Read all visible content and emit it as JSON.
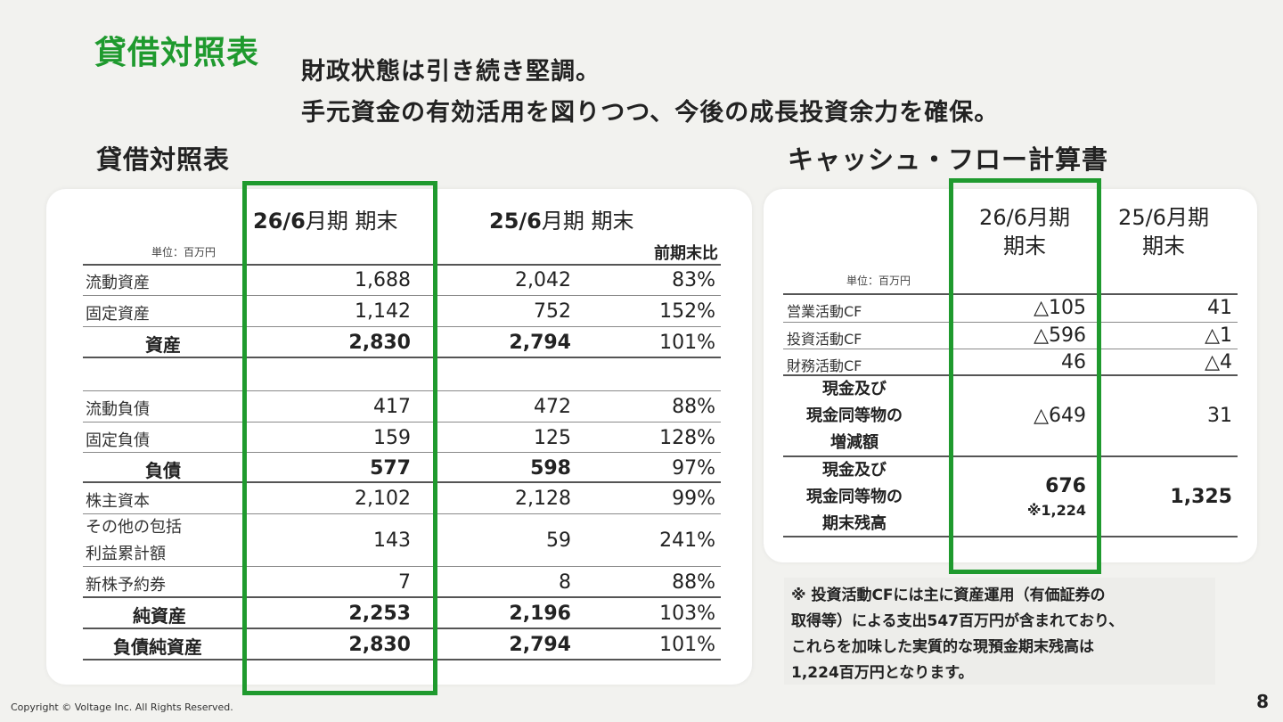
{
  "page_title": "貸借対照表",
  "subtitle": {
    "line1": "財政状態は引き続き堅調。",
    "line2": "手元資金の有効活用を図りつつ、今後の成長投資余力を確保。"
  },
  "balance_sheet": {
    "section_title": "貸借対照表",
    "unit": "単位：百万円",
    "col_current": "26/6月期 期末",
    "col_current_bold": "26/6",
    "col_current_rest": "月期 期末",
    "col_prev_bold": "25/6",
    "col_prev_rest": "月期 期末",
    "col_ratio": "前期末比",
    "rows": [
      {
        "label": "流動資産",
        "current": "1,688",
        "prev": "2,042",
        "ratio": "83%"
      },
      {
        "label": "固定資産",
        "current": "1,142",
        "prev": "752",
        "ratio": "152%"
      },
      {
        "label": "資産",
        "current": "2,830",
        "prev": "2,794",
        "ratio": "101%"
      },
      {
        "label": "流動負債",
        "current": "417",
        "prev": "472",
        "ratio": "88%"
      },
      {
        "label": "固定負債",
        "current": "159",
        "prev": "125",
        "ratio": "128%"
      },
      {
        "label": "負債",
        "current": "577",
        "prev": "598",
        "ratio": "97%"
      },
      {
        "label": "株主資本",
        "current": "2,102",
        "prev": "2,128",
        "ratio": "99%"
      },
      {
        "label_line1": "その他の包括",
        "label_line2": "利益累計額",
        "current": "143",
        "prev": "59",
        "ratio": "241%"
      },
      {
        "label": "新株予約券",
        "current": "7",
        "prev": "8",
        "ratio": "88%"
      },
      {
        "label": "純資産",
        "current": "2,253",
        "prev": "2,196",
        "ratio": "103%"
      },
      {
        "label": "負債純資産",
        "current": "2,830",
        "prev": "2,794",
        "ratio": "101%"
      }
    ]
  },
  "cash_flow": {
    "section_title": "キャッシュ・フロー計算書",
    "unit": "単位：百万円",
    "col_current_line1": "26/6月期",
    "col_current_line2": "期末",
    "col_prev_line1": "25/6月期",
    "col_prev_line2": "期末",
    "rows": [
      {
        "label": "営業活動CF",
        "current": "△105",
        "prev": "41"
      },
      {
        "label": "投資活動CF",
        "current": "△596",
        "prev": "△1"
      },
      {
        "label": "財務活動CF",
        "current": "46",
        "prev": "△4"
      },
      {
        "label_line1": "現金及び",
        "label_line2": "現金同等物の",
        "label_line3": "増減額",
        "current": "△649",
        "prev": "31"
      },
      {
        "label_line1": "現金及び",
        "label_line2": "現金同等物の",
        "label_line3": "期末残高",
        "current": "676",
        "current_note": "※1,224",
        "prev": "1,325"
      }
    ]
  },
  "note": {
    "line1": "※ 投資活動CFには主に資産運用（有価証券の",
    "line2": "取得等）による支出547百万円が含まれており、",
    "line3": "これらを加味した実質的な現預金期末残高は",
    "line4": "1,224百万円となります。"
  },
  "footer": {
    "copyright": "Copyright © Voltage Inc.  All Rights Reserved.",
    "page_number": "8"
  },
  "colors": {
    "accent_green": "#1f9a2e",
    "card_bg": "#ffffff",
    "page_bg": "#f2f2ef"
  }
}
